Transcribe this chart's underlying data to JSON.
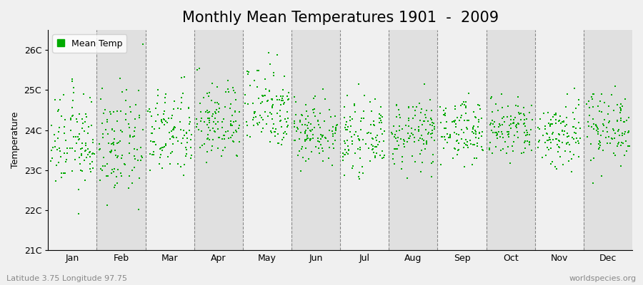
{
  "title": "Monthly Mean Temperatures 1901  -  2009",
  "ylabel": "Temperature",
  "xlabel_labels": [
    "Jan",
    "Feb",
    "Mar",
    "Apr",
    "May",
    "Jun",
    "Jul",
    "Aug",
    "Sep",
    "Oct",
    "Nov",
    "Dec"
  ],
  "ylim": [
    21,
    26.5
  ],
  "yticks": [
    21,
    22,
    23,
    24,
    25,
    26
  ],
  "ytick_labels": [
    "21C",
    "22C",
    "23C",
    "24C",
    "25C",
    "26C"
  ],
  "dot_color": "#00aa00",
  "background_color": "#f0f0f0",
  "plot_bg_color": "#f0f0f0",
  "band_color_light": "#f0f0f0",
  "band_color_dark": "#e0e0e0",
  "legend_label": "Mean Temp",
  "footer_left": "Latitude 3.75 Longitude 97.75",
  "footer_right": "worldspecies.org",
  "title_fontsize": 15,
  "axis_fontsize": 9,
  "tick_fontsize": 9,
  "footer_fontsize": 8,
  "n_years": 109,
  "monthly_means": [
    23.7,
    23.6,
    23.9,
    24.2,
    24.6,
    24.0,
    23.8,
    23.9,
    24.0,
    24.0,
    23.9,
    24.1
  ],
  "monthly_stds": [
    0.6,
    0.65,
    0.55,
    0.5,
    0.55,
    0.42,
    0.4,
    0.42,
    0.38,
    0.4,
    0.45,
    0.45
  ],
  "seed": 12345
}
